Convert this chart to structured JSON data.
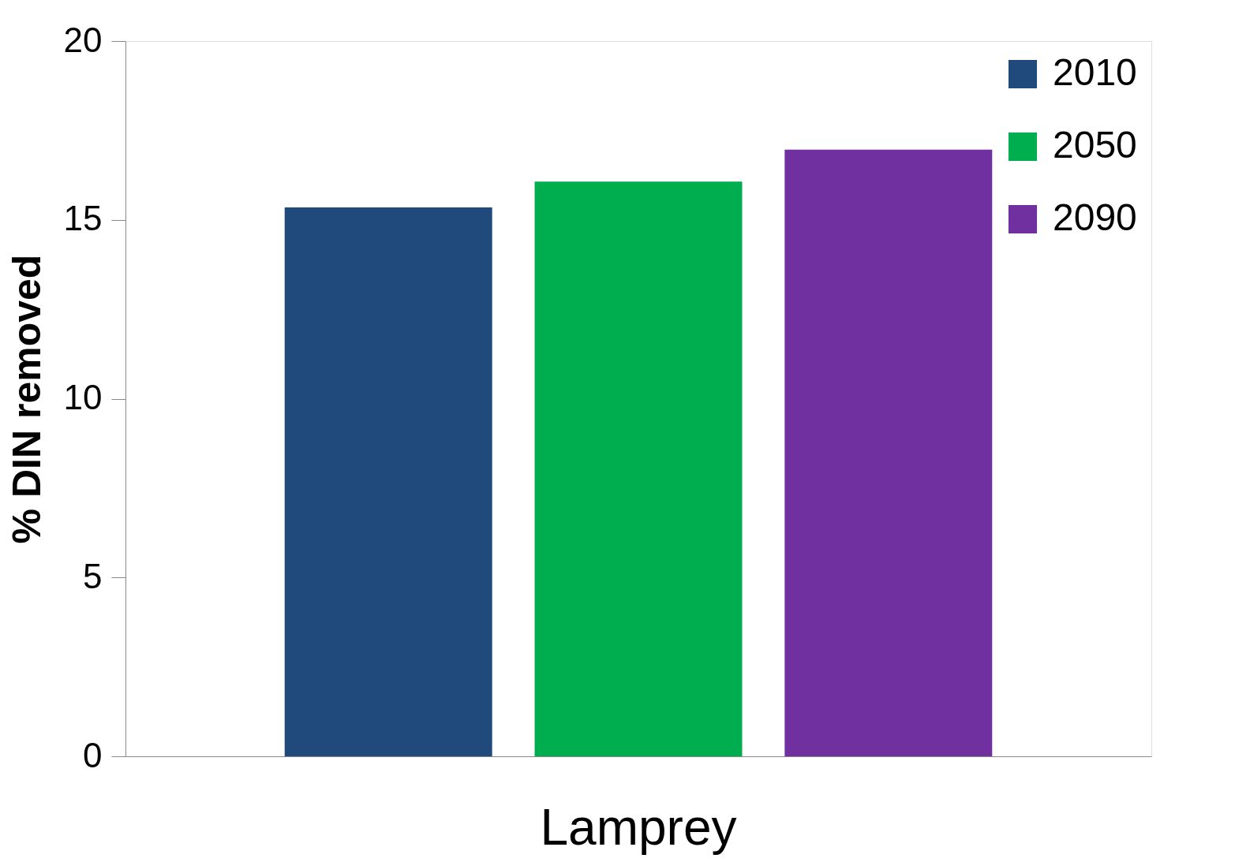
{
  "chart_data": {
    "type": "bar",
    "ylabel": "% DIN removed",
    "categories": [
      "Lamprey"
    ],
    "series": [
      {
        "name": "2010",
        "color": "#214a7c",
        "values": [
          15.35
        ]
      },
      {
        "name": "2050",
        "color": "#00ae4f",
        "values": [
          16.07
        ]
      },
      {
        "name": "2090",
        "color": "#7030a0",
        "values": [
          16.96
        ]
      }
    ],
    "ylim": [
      0,
      20
    ],
    "yticks": [
      0,
      5,
      10,
      15,
      20
    ],
    "grid": false,
    "legend": "top right"
  }
}
